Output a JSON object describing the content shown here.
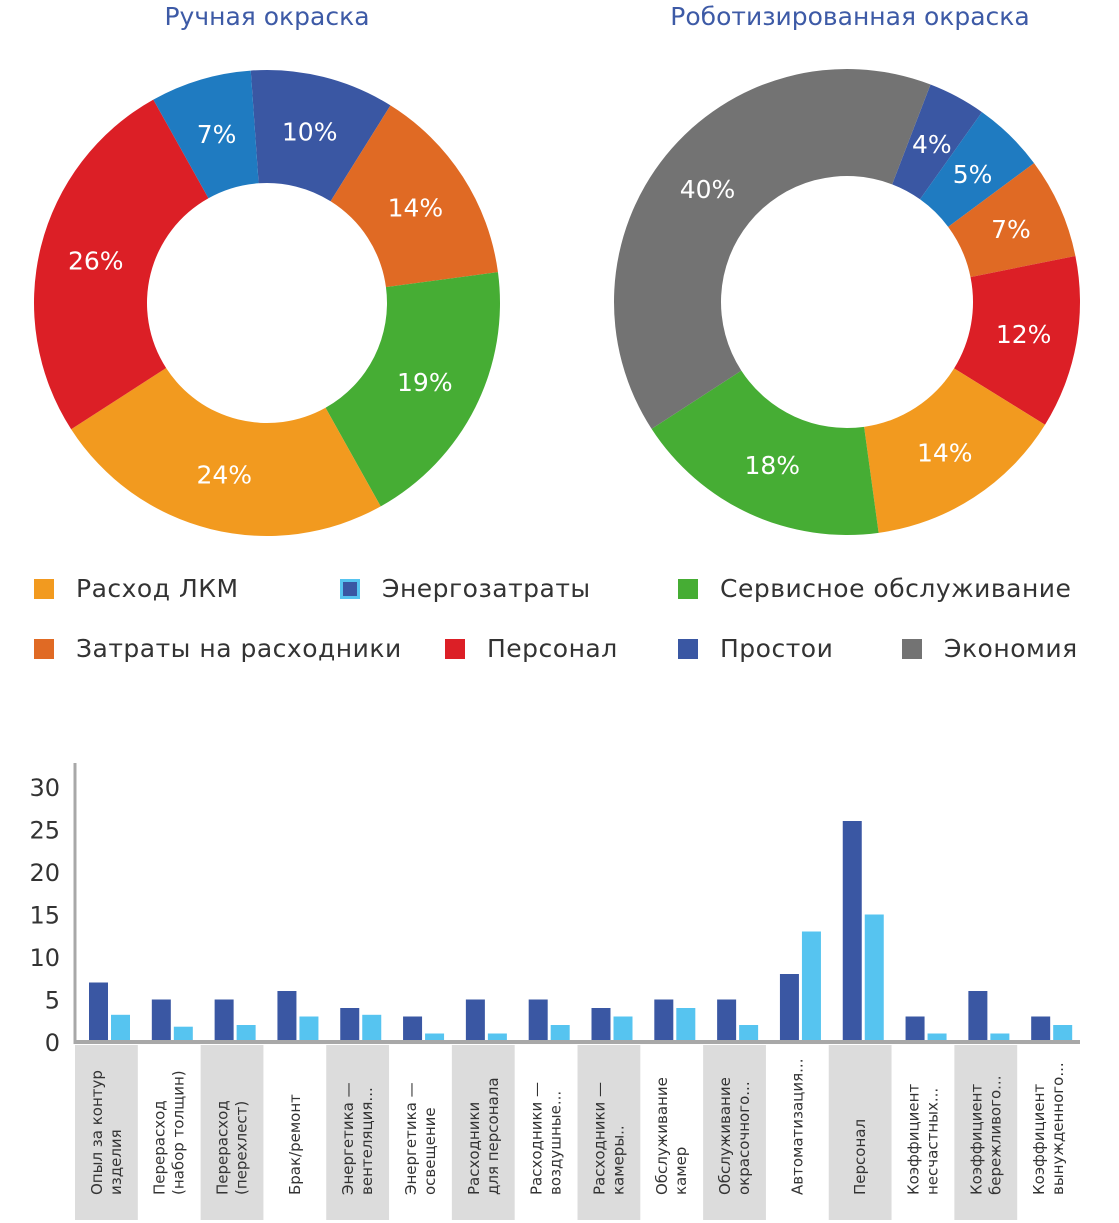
{
  "chart_data": [
    {
      "type": "pie",
      "donut": true,
      "title": "Ручная окраска",
      "slices": [
        {
          "label": "Простои",
          "value": 10,
          "text": "10%"
        },
        {
          "label": "Затраты на расходники",
          "value": 14,
          "text": "14%"
        },
        {
          "label": "Сервисное обслуживание",
          "value": 19,
          "text": "19%"
        },
        {
          "label": "Расход ЛКМ",
          "value": 24,
          "text": "24%"
        },
        {
          "label": "Персонал",
          "value": 26,
          "text": "26%"
        },
        {
          "label": "Энергозатраты",
          "value": 7,
          "text": "7%"
        }
      ]
    },
    {
      "type": "pie",
      "donut": true,
      "title": "Роботизированная окраска",
      "slices": [
        {
          "label": "Простои",
          "value": 4,
          "text": "4%"
        },
        {
          "label": "Энергозатраты",
          "value": 5,
          "text": "5%"
        },
        {
          "label": "Затраты на расходники",
          "value": 7,
          "text": "7%"
        },
        {
          "label": "Персонал",
          "value": 12,
          "text": "12%"
        },
        {
          "label": "Расход ЛКМ",
          "value": 14,
          "text": "14%"
        },
        {
          "label": "Сервисное обслуживание",
          "value": 18,
          "text": "18%"
        },
        {
          "label": "Экономия",
          "value": 40,
          "text": "40%"
        }
      ]
    },
    {
      "type": "bar",
      "categories": [
        [
          "Опыл за контур",
          "изделия"
        ],
        [
          "Перерасход",
          "(набор толщин)"
        ],
        [
          "Перерасход",
          "(перехлест)"
        ],
        [
          "Брак/ремонт"
        ],
        [
          "Энергетика —",
          "вентеляция..."
        ],
        [
          "Энергетика —",
          "освещение"
        ],
        [
          "Расходники",
          "для персонала"
        ],
        [
          "Расходники —",
          "воздушные..."
        ],
        [
          "Расходники —",
          "камеры.."
        ],
        [
          "Обслуживание",
          "камер"
        ],
        [
          "Обслуживание",
          "окрасочного..."
        ],
        [
          "Автоматизация..."
        ],
        [
          "Персонал"
        ],
        [
          "Коэффициент",
          "несчастных..."
        ],
        [
          "Коэффициент",
          "бережливого..."
        ],
        [
          "Коэффициент",
          "вынужденного..."
        ]
      ],
      "series": [
        {
          "color": "#3a57a3",
          "values": [
            7,
            5,
            5,
            6,
            4,
            3,
            5,
            5,
            4,
            5,
            5,
            8,
            26,
            3,
            6,
            3
          ]
        },
        {
          "color": "#56c4f0",
          "values": [
            3.2,
            1.8,
            2,
            3,
            3.2,
            1,
            1,
            2,
            3,
            4,
            2,
            13,
            15,
            1,
            1,
            2
          ]
        }
      ],
      "yticks": [
        "0",
        "5",
        "10",
        "15",
        "20",
        "25",
        "30"
      ],
      "ylim": [
        0,
        30
      ],
      "grid": false
    }
  ],
  "legend": [
    {
      "label": "Расход ЛКМ",
      "color": "#f29a1f"
    },
    {
      "label": "Энергозатраты",
      "color": "#1f7bc1"
    },
    {
      "label": "Сервисное обслуживание",
      "color": "#46ad34"
    },
    {
      "label": "Затраты на расходники",
      "color": "#e06a24"
    },
    {
      "label": "Персонал",
      "color": "#dc1f26"
    },
    {
      "label": "Простои",
      "color": "#3a57a3"
    },
    {
      "label": "Экономия",
      "color": "#737373"
    }
  ],
  "colors": {
    "Простои": "#3a57a3",
    "Энергозатраты": "#1f7bc1",
    "Затраты на расходники": "#e06a24",
    "Сервисное обслуживание": "#46ad34",
    "Расход ЛКМ": "#f29a1f",
    "Персонал": "#dc1f26",
    "Экономия": "#737373",
    "title": "#3d5aa6"
  }
}
